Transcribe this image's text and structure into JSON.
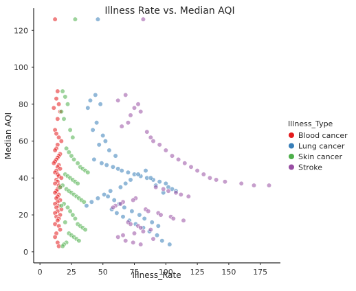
{
  "chart_data": {
    "type": "scatter",
    "title": "Illness Rate vs. Median AQI",
    "xlabel": "Illness_Rate",
    "ylabel": "Median AQI",
    "xlim": [
      -5,
      191
    ],
    "ylim": [
      -6,
      132
    ],
    "xticks": [
      0,
      25,
      50,
      75,
      100,
      125,
      150,
      175
    ],
    "yticks": [
      0,
      20,
      40,
      60,
      80,
      100,
      120
    ],
    "grid": false,
    "legend": {
      "title": "Illness_Type",
      "placement": "right"
    },
    "series": [
      {
        "name": "Blood cancer",
        "color": "#e41a1c",
        "x": [
          12,
          14,
          13,
          15,
          11,
          16,
          14,
          12,
          13,
          15,
          17,
          14,
          13,
          12,
          16,
          15,
          14,
          13,
          12,
          11,
          15,
          14,
          16,
          13,
          12,
          14,
          15,
          17,
          13,
          14,
          12,
          15,
          16,
          14,
          13,
          12,
          15,
          14,
          13,
          16,
          14,
          12,
          15,
          13,
          17,
          14,
          12,
          16,
          13,
          15,
          14,
          12,
          15,
          16,
          13,
          12,
          14,
          15
        ],
        "y": [
          126,
          87,
          83,
          80,
          78,
          76,
          72,
          66,
          64,
          62,
          60,
          58,
          56,
          55,
          53,
          52,
          51,
          50,
          49,
          48,
          47,
          46,
          45,
          44,
          43,
          42,
          41,
          40,
          39,
          38,
          37,
          36,
          35,
          34,
          33,
          32,
          31,
          30,
          29,
          28,
          27,
          26,
          25,
          24,
          23,
          22,
          21,
          20,
          19,
          18,
          17,
          15,
          14,
          12,
          10,
          8,
          5,
          3
        ]
      },
      {
        "name": "Lung cancer",
        "color": "#377eb8",
        "x": [
          46,
          44,
          40,
          38,
          48,
          45,
          42,
          50,
          52,
          47,
          55,
          60,
          43,
          49,
          53,
          58,
          62,
          65,
          70,
          75,
          80,
          85,
          90,
          95,
          100,
          102,
          105,
          108,
          98,
          92,
          88,
          84,
          78,
          72,
          68,
          64,
          56,
          51,
          46,
          41,
          37,
          57,
          61,
          66,
          71,
          76,
          82,
          87,
          93,
          97,
          103,
          54,
          59,
          63,
          67,
          73,
          79,
          83,
          89,
          94
        ],
        "y": [
          126,
          85,
          82,
          78,
          80,
          70,
          66,
          63,
          60,
          58,
          55,
          52,
          50,
          48,
          47,
          46,
          45,
          44,
          43,
          42,
          41,
          40,
          39,
          38,
          37,
          35,
          34,
          33,
          32,
          36,
          40,
          44,
          42,
          39,
          37,
          35,
          33,
          31,
          29,
          27,
          25,
          23,
          21,
          19,
          17,
          15,
          13,
          11,
          9,
          6,
          4,
          30,
          28,
          26,
          24,
          22,
          20,
          18,
          16,
          14
        ]
      },
      {
        "name": "Skin cancer",
        "color": "#4daf4a",
        "x": [
          28,
          18,
          20,
          22,
          17,
          19,
          24,
          26,
          21,
          23,
          25,
          27,
          30,
          32,
          34,
          36,
          38,
          20,
          22,
          24,
          26,
          28,
          30,
          18,
          16,
          21,
          23,
          25,
          27,
          29,
          31,
          33,
          35,
          19,
          17,
          22,
          24,
          26,
          28,
          20,
          30,
          32,
          34,
          36,
          23,
          25,
          27,
          29,
          31,
          21,
          19,
          18
        ],
        "y": [
          126,
          87,
          84,
          80,
          76,
          72,
          66,
          62,
          56,
          54,
          52,
          50,
          48,
          46,
          45,
          44,
          43,
          42,
          41,
          40,
          39,
          38,
          37,
          36,
          35,
          34,
          33,
          32,
          31,
          30,
          29,
          28,
          27,
          26,
          25,
          24,
          22,
          20,
          18,
          16,
          15,
          14,
          13,
          12,
          10,
          9,
          8,
          7,
          6,
          5,
          4,
          3
        ]
      },
      {
        "name": "Stroke",
        "color": "#984ea3",
        "x": [
          82,
          68,
          62,
          78,
          75,
          80,
          72,
          70,
          65,
          85,
          88,
          90,
          95,
          100,
          105,
          110,
          115,
          120,
          125,
          130,
          135,
          140,
          147,
          160,
          170,
          182,
          92,
          98,
          102,
          108,
          112,
          118,
          76,
          74,
          66,
          64,
          60,
          58,
          84,
          86,
          94,
          96,
          104,
          106,
          114,
          70,
          72,
          78,
          80,
          88,
          82,
          75,
          66,
          62,
          90,
          68,
          74,
          80
        ],
        "y": [
          126,
          85,
          82,
          80,
          78,
          76,
          74,
          70,
          68,
          65,
          62,
          60,
          58,
          55,
          52,
          50,
          48,
          46,
          44,
          42,
          40,
          39,
          38,
          37,
          36,
          36,
          35,
          34,
          33,
          32,
          31,
          30,
          29,
          28,
          27,
          26,
          25,
          24,
          23,
          22,
          21,
          20,
          19,
          18,
          17,
          16,
          15,
          14,
          13,
          12,
          11,
          10,
          9,
          8,
          7,
          6,
          5,
          4
        ]
      }
    ]
  }
}
